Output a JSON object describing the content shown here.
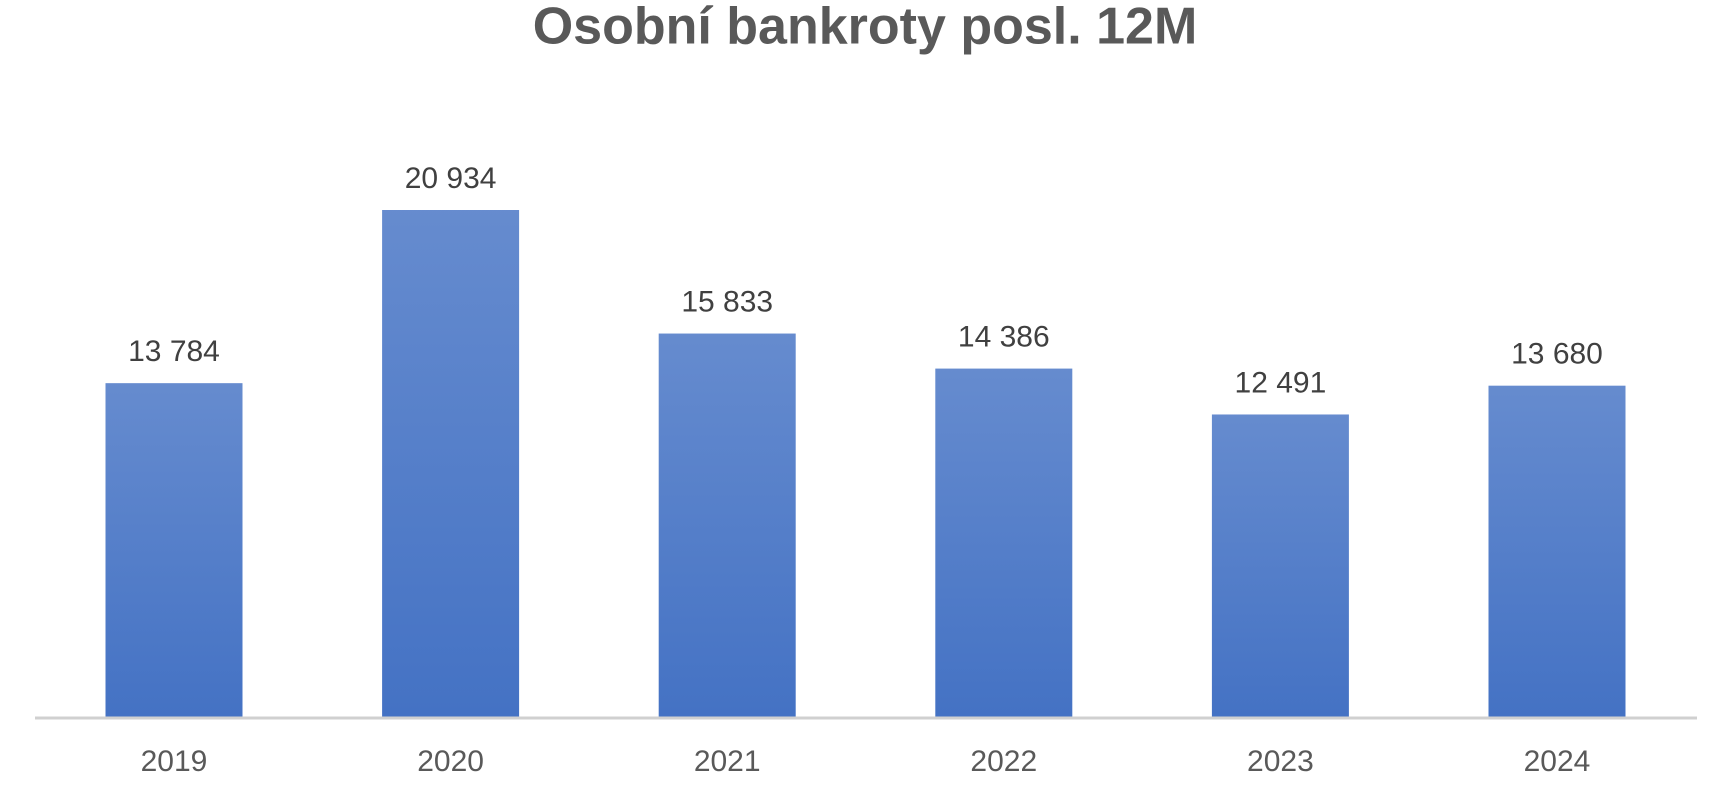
{
  "chart_data": {
    "type": "bar",
    "title": "Osobní bankroty posl. 12M",
    "categories": [
      "2019",
      "2020",
      "2021",
      "2022",
      "2023",
      "2024"
    ],
    "values": [
      13784,
      20934,
      15833,
      14386,
      12491,
      13680
    ],
    "value_labels": [
      "13 784",
      "20 934",
      "15 833",
      "14 386",
      "12 491",
      "13 680"
    ],
    "color": "#4472c4"
  }
}
